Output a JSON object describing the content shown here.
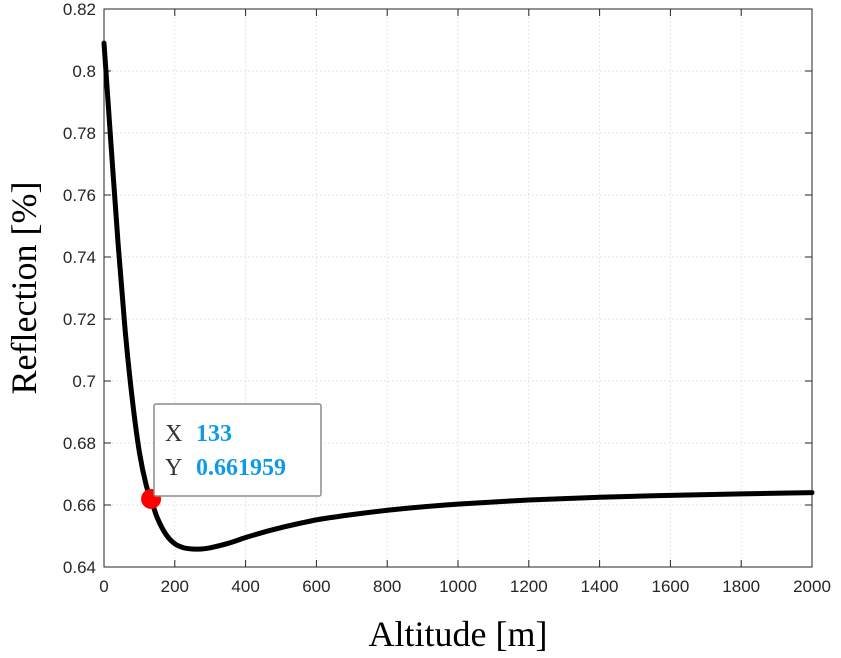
{
  "chart_data": {
    "type": "line",
    "title": "",
    "xlabel": "Altitude [m]",
    "ylabel": "Reflection [%]",
    "xlim": [
      0,
      2000
    ],
    "ylim": [
      0.64,
      0.82
    ],
    "grid": true,
    "xticks": [
      0,
      200,
      400,
      600,
      800,
      1000,
      1200,
      1400,
      1600,
      1800,
      2000
    ],
    "yticks": [
      0.64,
      0.66,
      0.68,
      0.7,
      0.72,
      0.74,
      0.76,
      0.78,
      0.8,
      0.82
    ],
    "xtick_labels": [
      "0",
      "200",
      "400",
      "600",
      "800",
      "1000",
      "1200",
      "1400",
      "1600",
      "1800",
      "2000"
    ],
    "ytick_labels": [
      "0.64",
      "0.66",
      "0.68",
      "0.7",
      "0.72",
      "0.74",
      "0.76",
      "0.78",
      "0.8",
      "0.82"
    ],
    "line_color": "#000000",
    "series": [
      {
        "x": [
          0,
          20,
          40,
          60,
          80,
          100,
          120,
          133,
          150,
          175,
          200,
          225,
          250,
          275,
          300,
          350,
          400,
          450,
          500,
          600,
          700,
          800,
          900,
          1000,
          1200,
          1400,
          1600,
          1800,
          2000
        ],
        "y": [
          0.809,
          0.776,
          0.744,
          0.716,
          0.694,
          0.677,
          0.666,
          0.661959,
          0.656,
          0.6505,
          0.6475,
          0.6462,
          0.6458,
          0.6458,
          0.6462,
          0.6476,
          0.6495,
          0.6512,
          0.6527,
          0.6552,
          0.6569,
          0.6583,
          0.6594,
          0.6603,
          0.6616,
          0.6625,
          0.6631,
          0.6636,
          0.664
        ]
      }
    ],
    "datatip": {
      "x_key": "X",
      "x_value": "133",
      "y_key": "Y",
      "y_value": "0.661959",
      "point_x": 133,
      "point_y": 0.661959,
      "marker_color": "#ff0000",
      "value_color": "#0f9ae8"
    }
  }
}
